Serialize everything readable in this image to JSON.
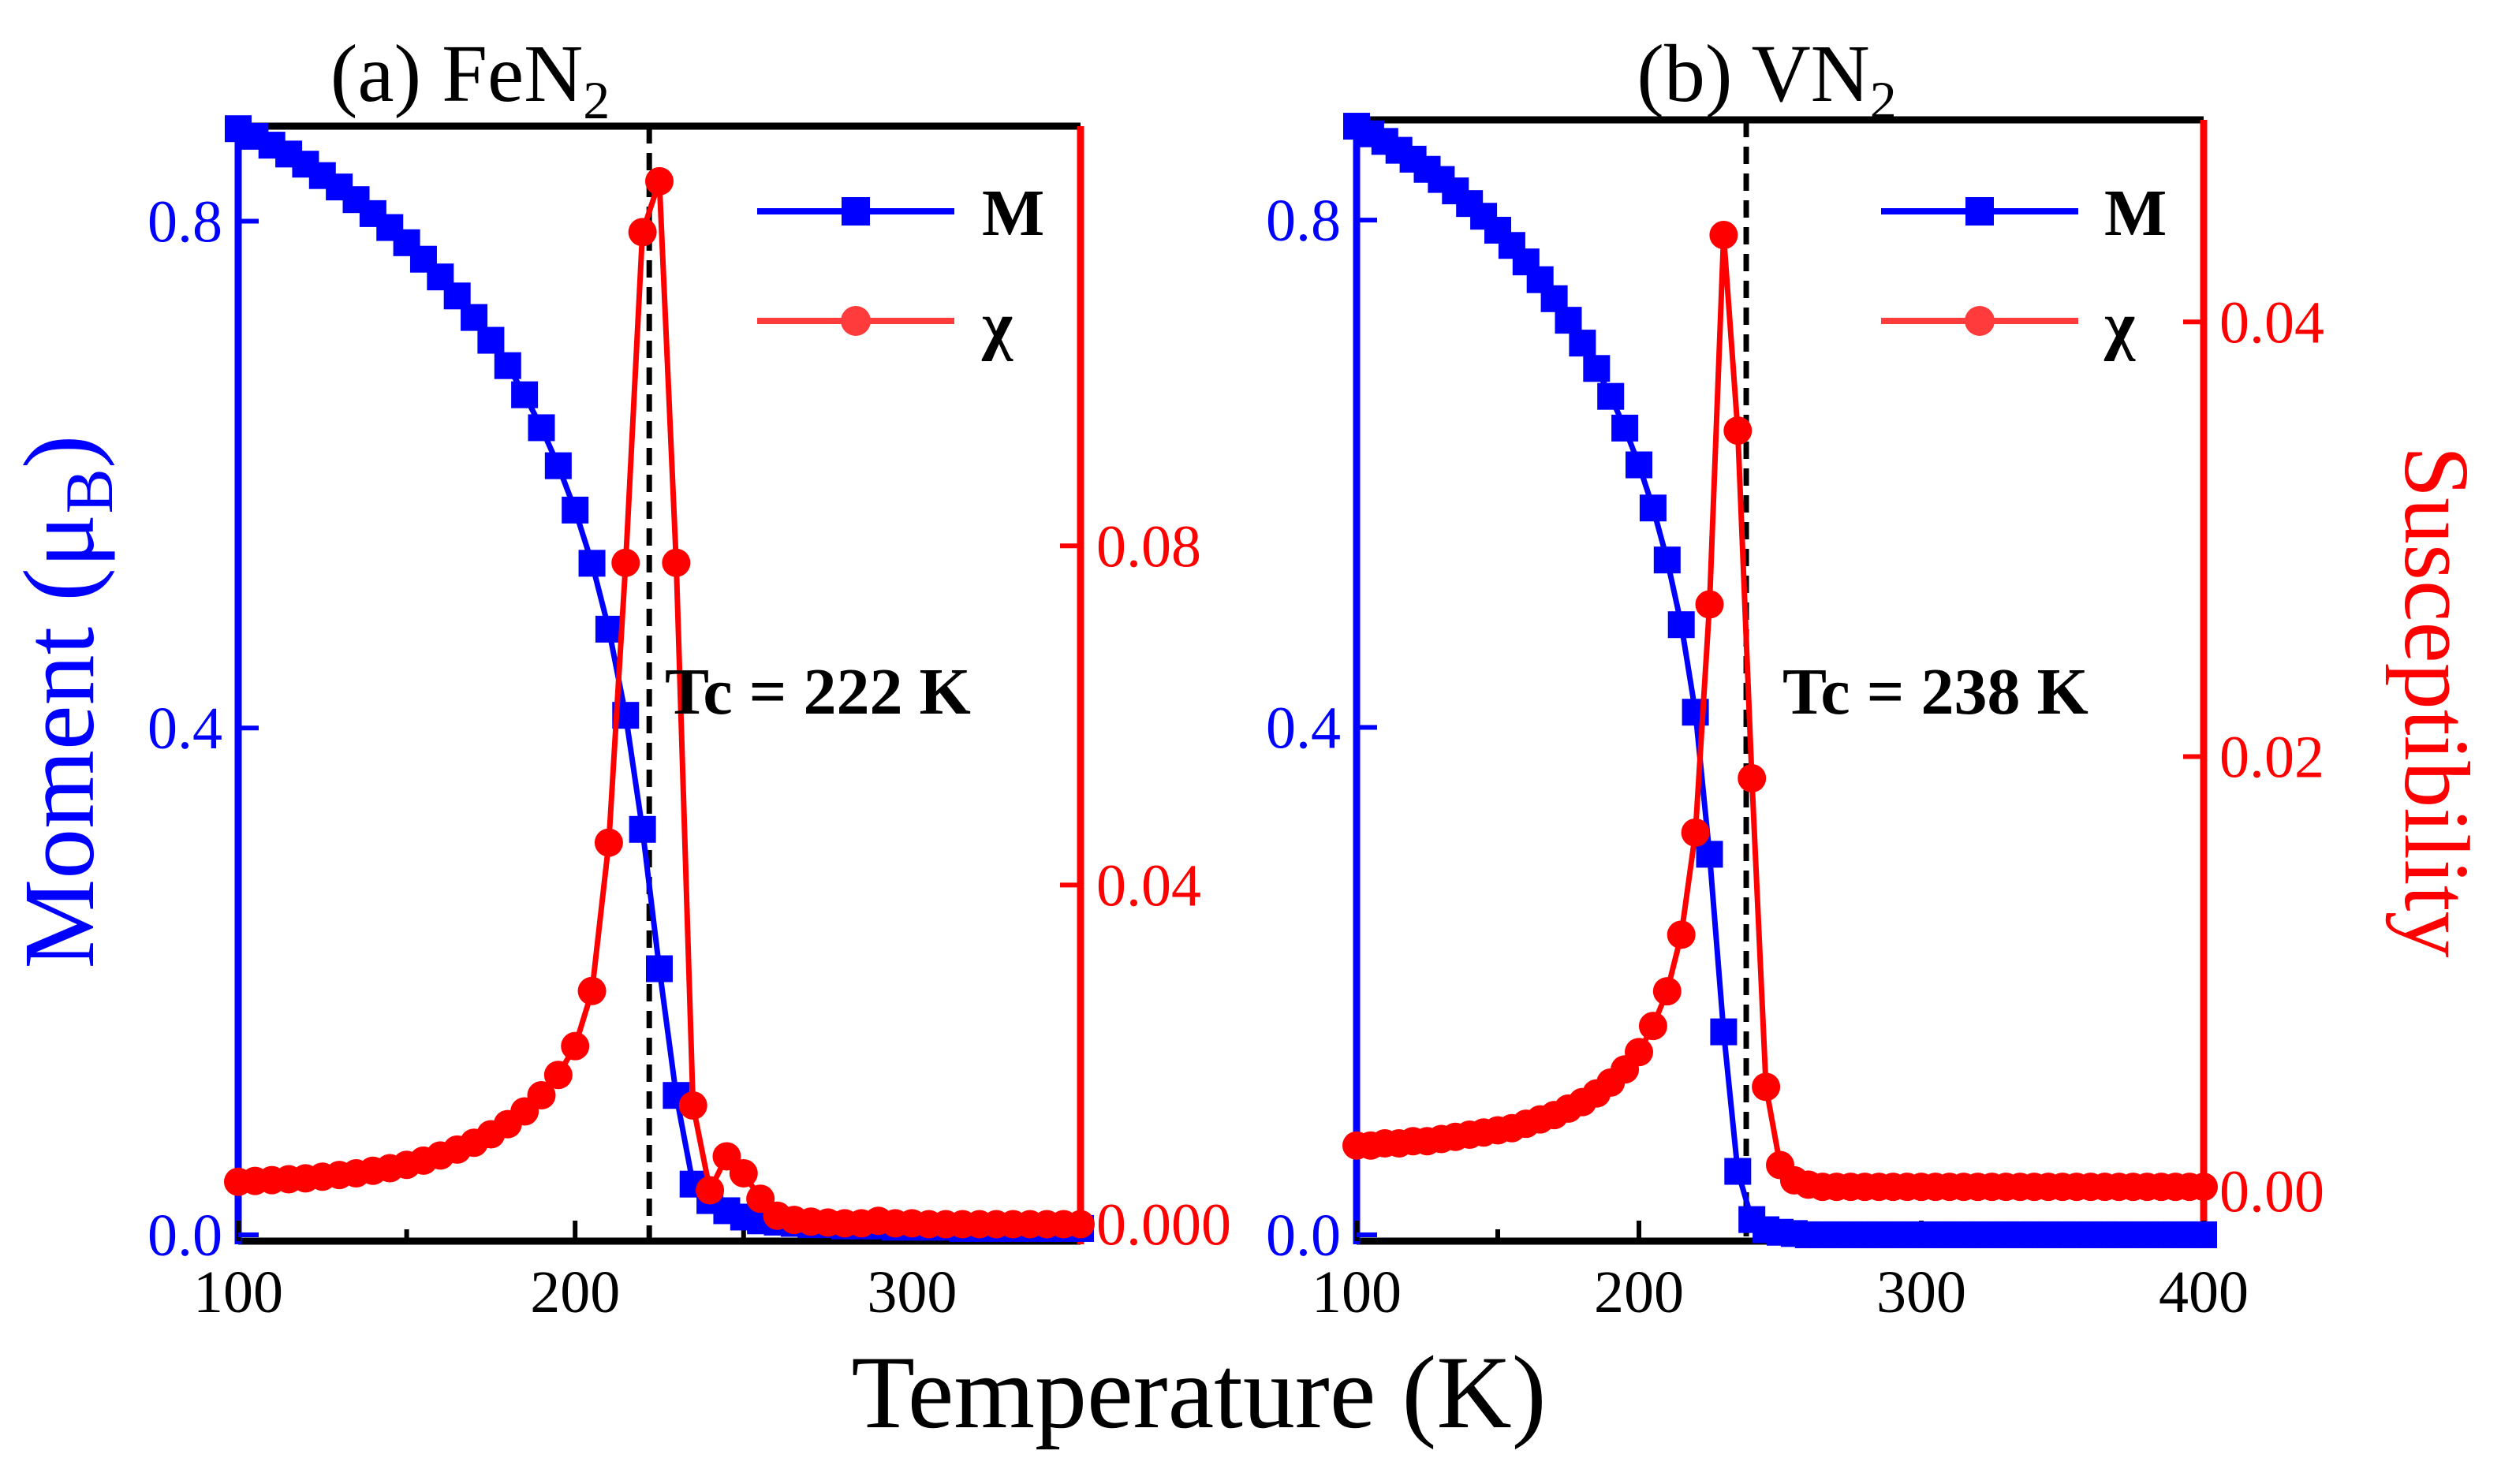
{
  "figure": {
    "xlabel": "Temperature (K)",
    "ylabel_left": "Moment (μB)",
    "ylabel_left_main": "Moment (μ",
    "ylabel_left_sub": "B",
    "ylabel_left_close": ")",
    "ylabel_right": "Susceptibility"
  },
  "legend": {
    "m_label": "M",
    "chi_label": "χ"
  },
  "colors": {
    "moment": "#0000ff",
    "susceptibility": "#ff0000",
    "tc_line": "#000000",
    "axis": "#000000"
  },
  "chart_data": [
    {
      "type": "line",
      "panel": "a",
      "title": "(a) FeN2",
      "title_main": "(a) FeN",
      "title_sub": "2",
      "tc_label": "Tc = 222 K",
      "tc": 222,
      "xlim": [
        100,
        350
      ],
      "ylim_left": [
        -0.005,
        0.875
      ],
      "ylim_right": [
        -0.002,
        0.1295
      ],
      "xticks": [
        "100",
        "200",
        "300"
      ],
      "xtick_values": [
        100,
        200,
        300
      ],
      "yticks_left": [
        "0.0",
        "0.4",
        "0.8"
      ],
      "ytick_values_left": [
        0,
        0.4,
        0.8
      ],
      "yticks_right": [
        "0.000",
        "0.04",
        "0.08"
      ],
      "ytick_values_right": [
        0,
        0.04,
        0.08
      ],
      "series": [
        {
          "name": "M",
          "axis": "left",
          "marker": "square",
          "x": [
            100,
            105,
            110,
            115,
            120,
            125,
            130,
            135,
            140,
            145,
            150,
            155,
            160,
            165,
            170,
            175,
            180,
            185,
            190,
            195,
            200,
            205,
            210,
            215,
            220,
            225,
            230,
            235,
            240,
            245,
            250,
            255,
            260,
            265,
            270,
            275,
            280,
            285,
            290,
            295,
            300,
            305,
            310,
            315,
            320,
            325,
            330,
            335,
            340,
            345,
            350
          ],
          "y": [
            0.873,
            0.867,
            0.86,
            0.853,
            0.845,
            0.836,
            0.827,
            0.817,
            0.806,
            0.795,
            0.783,
            0.77,
            0.756,
            0.741,
            0.724,
            0.706,
            0.686,
            0.663,
            0.637,
            0.607,
            0.572,
            0.53,
            0.478,
            0.41,
            0.32,
            0.21,
            0.11,
            0.04,
            0.027,
            0.019,
            0.014,
            0.011,
            0.01,
            0.009,
            0.008,
            0.008,
            0.007,
            0.007,
            0.007,
            0.006,
            0.006,
            0.006,
            0.006,
            0.005,
            0.005,
            0.005,
            0.005,
            0.005,
            0.005,
            0.005,
            0.005
          ]
        },
        {
          "name": "χ",
          "axis": "right",
          "marker": "circle",
          "x": [
            100,
            105,
            110,
            115,
            120,
            125,
            130,
            135,
            140,
            145,
            150,
            155,
            160,
            165,
            170,
            175,
            180,
            185,
            190,
            195,
            200,
            205,
            210,
            215,
            220,
            225,
            230,
            235,
            240,
            245,
            250,
            255,
            260,
            265,
            270,
            275,
            280,
            285,
            290,
            295,
            300,
            305,
            310,
            315,
            320,
            325,
            330,
            335,
            340,
            345,
            350
          ],
          "y": [
            0.005,
            0.0051,
            0.0052,
            0.0053,
            0.0054,
            0.0056,
            0.0058,
            0.006,
            0.0063,
            0.0066,
            0.007,
            0.0075,
            0.0081,
            0.0088,
            0.0096,
            0.0106,
            0.0118,
            0.0133,
            0.0152,
            0.0176,
            0.021,
            0.0275,
            0.045,
            0.078,
            0.117,
            0.123,
            0.078,
            0.014,
            0.004,
            0.008,
            0.006,
            0.003,
            0.001,
            0.0005,
            0.0003,
            0.0002,
            0.0001,
            0.0001,
            0.0004,
            0.0001,
            0.0001,
            0.0,
            0.0,
            0.0,
            0.0,
            0.0,
            0.0,
            0.0,
            0.0,
            0.0,
            0.0
          ]
        }
      ]
    },
    {
      "type": "line",
      "panel": "b",
      "title": "(b) VN2",
      "title_main": "(b) VN",
      "title_sub": "2",
      "tc_label": "Tc = 238 K",
      "tc": 238,
      "xlim": [
        100,
        400
      ],
      "ylim_left": [
        -0.005,
        0.879
      ],
      "ylim_right": [
        -0.0023,
        0.0493
      ],
      "xticks": [
        "100",
        "200",
        "300",
        "400"
      ],
      "xtick_values": [
        100,
        200,
        300,
        400
      ],
      "yticks_left": [
        "0.0",
        "0.4",
        "0.8"
      ],
      "ytick_values_left": [
        0,
        0.4,
        0.8
      ],
      "yticks_right": [
        "0.00",
        "0.02",
        "0.04"
      ],
      "ytick_values_right": [
        0,
        0.02,
        0.04
      ],
      "series": [
        {
          "name": "M",
          "axis": "left",
          "marker": "square",
          "x": [
            100,
            105,
            110,
            115,
            120,
            125,
            130,
            135,
            140,
            145,
            150,
            155,
            160,
            165,
            170,
            175,
            180,
            185,
            190,
            195,
            200,
            205,
            210,
            215,
            220,
            225,
            230,
            235,
            240,
            245,
            250,
            255,
            260,
            265,
            270,
            275,
            280,
            285,
            290,
            295,
            300,
            305,
            310,
            315,
            320,
            325,
            330,
            335,
            340,
            345,
            350,
            355,
            360,
            365,
            370,
            375,
            380,
            385,
            390,
            395,
            400
          ],
          "y": [
            0.874,
            0.868,
            0.862,
            0.855,
            0.848,
            0.84,
            0.832,
            0.823,
            0.813,
            0.803,
            0.792,
            0.78,
            0.767,
            0.753,
            0.738,
            0.721,
            0.703,
            0.683,
            0.661,
            0.636,
            0.607,
            0.573,
            0.532,
            0.481,
            0.412,
            0.3,
            0.16,
            0.05,
            0.012,
            0.004,
            0.002,
            0.001,
            0.0,
            0.0,
            0.0,
            0.0,
            0.0,
            0.0,
            0.0,
            0.0,
            0.0,
            0.0,
            0.0,
            0.0,
            0.0,
            0.0,
            0.0,
            0.0,
            0.0,
            0.0,
            0.0,
            0.0,
            0.0,
            0.0,
            0.0,
            0.0,
            0.0,
            0.0,
            0.0,
            0.0,
            0.0
          ]
        },
        {
          "name": "χ",
          "axis": "right",
          "marker": "circle",
          "x": [
            100,
            105,
            110,
            115,
            120,
            125,
            130,
            135,
            140,
            145,
            150,
            155,
            160,
            165,
            170,
            175,
            180,
            185,
            190,
            195,
            200,
            205,
            210,
            215,
            220,
            225,
            230,
            235,
            240,
            245,
            250,
            255,
            260,
            265,
            270,
            275,
            280,
            285,
            290,
            295,
            300,
            305,
            310,
            315,
            320,
            325,
            330,
            335,
            340,
            345,
            350,
            355,
            360,
            365,
            370,
            375,
            380,
            385,
            390,
            395,
            400
          ],
          "y": [
            0.0021,
            0.0021,
            0.0022,
            0.0022,
            0.0023,
            0.0023,
            0.0024,
            0.0025,
            0.0026,
            0.0027,
            0.0028,
            0.0029,
            0.0031,
            0.0033,
            0.0035,
            0.0038,
            0.0041,
            0.0045,
            0.005,
            0.0056,
            0.0064,
            0.0076,
            0.0092,
            0.0118,
            0.0165,
            0.027,
            0.044,
            0.035,
            0.019,
            0.0048,
            0.0012,
            0.0005,
            0.0003,
            0.0002,
            0.0002,
            0.0002,
            0.0002,
            0.0002,
            0.0002,
            0.0002,
            0.0002,
            0.0002,
            0.0002,
            0.0002,
            0.0002,
            0.0002,
            0.0002,
            0.0002,
            0.0002,
            0.0002,
            0.0002,
            0.0002,
            0.0002,
            0.0002,
            0.0002,
            0.0002,
            0.0002,
            0.0002,
            0.0002,
            0.0002,
            0.0002
          ]
        }
      ]
    }
  ]
}
